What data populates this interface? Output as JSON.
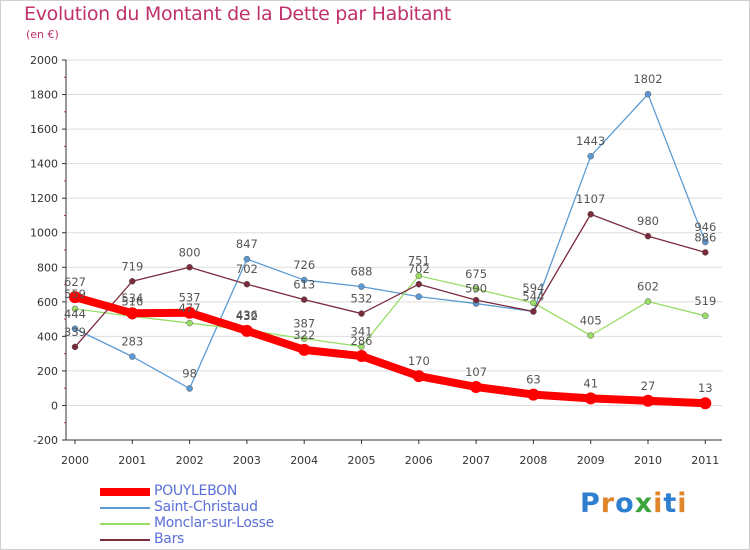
{
  "title": "Evolution du Montant de la Dette par Habitant",
  "subtitle": "(en €)",
  "logo_text": "Proxiti",
  "colors": {
    "title": "#c0306a",
    "grid": "#dddddd",
    "axis": "#333333",
    "tick_text": "#333333",
    "label_text": "#555555",
    "legend_text": "#5b6fd6"
  },
  "chart_data": {
    "type": "line",
    "title": "Evolution du Montant de la Dette par Habitant",
    "subtitle": "(en €)",
    "xlabel": "",
    "ylabel": "",
    "ylim": [
      -200,
      2000
    ],
    "yticks": [
      -200,
      0,
      200,
      400,
      600,
      800,
      1000,
      1200,
      1400,
      1600,
      1800,
      2000
    ],
    "categories": [
      "2000",
      "2001",
      "2002",
      "2003",
      "2004",
      "2005",
      "2006",
      "2007",
      "2008",
      "2009",
      "2010",
      "2011"
    ],
    "grid": "horizontal",
    "legend_position": "bottom-left",
    "series": [
      {
        "name": "POUYLEBON",
        "color": "#ff0000",
        "values": [
          627,
          534,
          537,
          432,
          322,
          286,
          170,
          107,
          63,
          41,
          27,
          13
        ]
      },
      {
        "name": "Saint-Christaud",
        "color": "#5b9bd5",
        "values": [
          444,
          283,
          98,
          847,
          726,
          688,
          630,
          590,
          544,
          1443,
          1802,
          946
        ]
      },
      {
        "name": "Monclar-sur-Losse",
        "color": "#99dd66",
        "values": [
          559,
          516,
          477,
          436,
          387,
          341,
          751,
          675,
          594,
          405,
          602,
          519
        ]
      },
      {
        "name": "Bars",
        "color": "#7b2b3b",
        "values": [
          339,
          719,
          800,
          702,
          613,
          532,
          702,
          610,
          544,
          1107,
          980,
          886
        ]
      }
    ],
    "data_labels": {
      "POUYLEBON": [
        "627",
        "534",
        "537",
        "432",
        "322",
        "286",
        "170",
        "107",
        "63",
        "41",
        "27",
        "13"
      ],
      "Saint-Christaud": [
        "444",
        "283",
        "98",
        "847",
        "726",
        "688",
        "",
        "590",
        "",
        "1443",
        "1802",
        "946"
      ],
      "Monclar-sur-Losse": [
        "559",
        "516",
        "477",
        "436",
        "387",
        "341",
        "751",
        "675",
        "594",
        "405",
        "602",
        "519"
      ],
      "Bars": [
        "339",
        "719",
        "800",
        "702",
        "613",
        "532",
        "702",
        "",
        "544",
        "1107",
        "980",
        "886"
      ]
    }
  }
}
